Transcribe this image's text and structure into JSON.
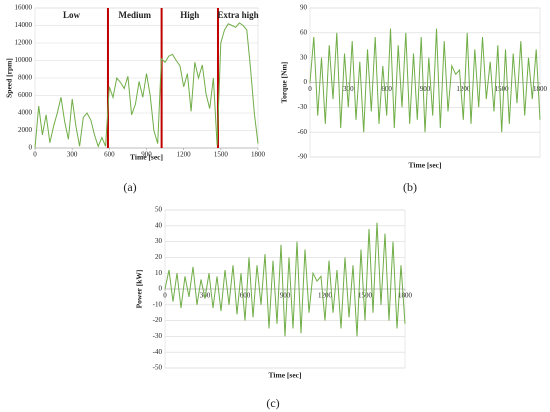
{
  "chart_data": [
    {
      "type": "line",
      "y_label": "Speed [rpm]",
      "x_label": "Time [sec]",
      "caption": "(a)",
      "annotations": [
        "Low",
        "Medium",
        "High",
        "Extra high"
      ],
      "phase_boundaries": [
        589,
        1022,
        1477
      ],
      "boundary_color": "#c00000",
      "color": "#70ad47",
      "grid": true,
      "x": [
        0,
        30,
        60,
        90,
        120,
        150,
        180,
        210,
        240,
        270,
        300,
        330,
        360,
        390,
        420,
        450,
        480,
        510,
        540,
        570,
        600,
        630,
        660,
        690,
        720,
        750,
        780,
        810,
        840,
        870,
        900,
        930,
        960,
        990,
        1020,
        1050,
        1080,
        1110,
        1140,
        1170,
        1200,
        1230,
        1260,
        1290,
        1320,
        1350,
        1380,
        1410,
        1440,
        1470,
        1500,
        1530,
        1560,
        1590,
        1620,
        1650,
        1680,
        1710,
        1740,
        1770,
        1800
      ],
      "values": [
        0,
        4800,
        1500,
        3800,
        600,
        2500,
        4000,
        5800,
        3000,
        1000,
        5600,
        2500,
        200,
        3500,
        4000,
        3200,
        1500,
        200,
        1200,
        200,
        7000,
        5800,
        8000,
        7500,
        6800,
        8200,
        3800,
        5000,
        7600,
        5800,
        8500,
        6000,
        2000,
        500,
        10200,
        9800,
        10500,
        10700,
        10000,
        9400,
        7000,
        8500,
        4200,
        9800,
        8000,
        9500,
        6200,
        4500,
        8000,
        300,
        12000,
        13500,
        14200,
        14000,
        13800,
        14300,
        14000,
        13500,
        9000,
        4000,
        500
      ],
      "xlim": [
        0,
        1800
      ],
      "xticks": [
        0,
        300,
        600,
        900,
        1200,
        1500,
        1800
      ],
      "ylim": [
        0,
        16000
      ],
      "yticks": [
        0,
        2000,
        4000,
        6000,
        8000,
        10000,
        12000,
        14000,
        16000
      ]
    },
    {
      "type": "line",
      "y_label": "Torque [Nm]",
      "x_label": "Time [sec]",
      "caption": "(b)",
      "color": "#70ad47",
      "grid": true,
      "x": [
        0,
        30,
        60,
        90,
        120,
        150,
        180,
        210,
        240,
        270,
        300,
        330,
        360,
        390,
        420,
        450,
        480,
        510,
        540,
        570,
        600,
        630,
        660,
        690,
        720,
        750,
        780,
        810,
        840,
        870,
        900,
        930,
        960,
        990,
        1020,
        1050,
        1080,
        1110,
        1140,
        1170,
        1200,
        1230,
        1260,
        1290,
        1320,
        1350,
        1380,
        1410,
        1440,
        1470,
        1500,
        1530,
        1560,
        1590,
        1620,
        1650,
        1680,
        1710,
        1740,
        1770,
        1800
      ],
      "values": [
        0,
        55,
        -40,
        30,
        -50,
        45,
        -20,
        60,
        -55,
        35,
        -30,
        50,
        -45,
        25,
        -60,
        40,
        -35,
        55,
        -50,
        20,
        -40,
        65,
        -55,
        45,
        -30,
        60,
        -50,
        35,
        -45,
        55,
        -60,
        30,
        -40,
        65,
        -55,
        50,
        -35,
        20,
        10,
        15,
        -45,
        60,
        -50,
        40,
        -30,
        55,
        -20,
        25,
        -35,
        45,
        -60,
        40,
        -50,
        35,
        -25,
        50,
        -40,
        30,
        -20,
        40,
        -45
      ],
      "xlim": [
        0,
        1800
      ],
      "xticks": [
        0,
        300,
        600,
        900,
        1200,
        1500,
        1800
      ],
      "ylim": [
        -90,
        90
      ],
      "yticks": [
        -90,
        -60,
        -30,
        0,
        30,
        60,
        90
      ]
    },
    {
      "type": "line",
      "y_label": "Power [kW]",
      "x_label": "Time [sec]",
      "caption": "(c)",
      "color": "#70ad47",
      "grid": true,
      "x": [
        0,
        30,
        60,
        90,
        120,
        150,
        180,
        210,
        240,
        270,
        300,
        330,
        360,
        390,
        420,
        450,
        480,
        510,
        540,
        570,
        600,
        630,
        660,
        690,
        720,
        750,
        780,
        810,
        840,
        870,
        900,
        930,
        960,
        990,
        1020,
        1050,
        1080,
        1110,
        1140,
        1170,
        1200,
        1230,
        1260,
        1290,
        1320,
        1350,
        1380,
        1410,
        1440,
        1470,
        1500,
        1530,
        1560,
        1590,
        1620,
        1650,
        1680,
        1710,
        1740,
        1770,
        1800
      ],
      "values": [
        0,
        12,
        -8,
        10,
        -12,
        8,
        -5,
        14,
        -10,
        6,
        -6,
        10,
        -12,
        8,
        -14,
        12,
        -10,
        15,
        -16,
        10,
        -20,
        20,
        -18,
        15,
        -10,
        22,
        -25,
        18,
        -22,
        28,
        -30,
        20,
        -25,
        30,
        -28,
        25,
        -15,
        10,
        5,
        8,
        -20,
        18,
        -15,
        12,
        -25,
        20,
        -18,
        15,
        -30,
        25,
        -20,
        38,
        -15,
        42,
        -10,
        35,
        -20,
        30,
        -25,
        15,
        -22
      ],
      "xlim": [
        0,
        1800
      ],
      "xticks": [
        0,
        300,
        600,
        900,
        1200,
        1500,
        1800
      ],
      "ylim": [
        -50,
        50
      ],
      "yticks": [
        -50,
        -40,
        -30,
        -20,
        -10,
        0,
        10,
        20,
        30,
        40,
        50
      ]
    }
  ]
}
